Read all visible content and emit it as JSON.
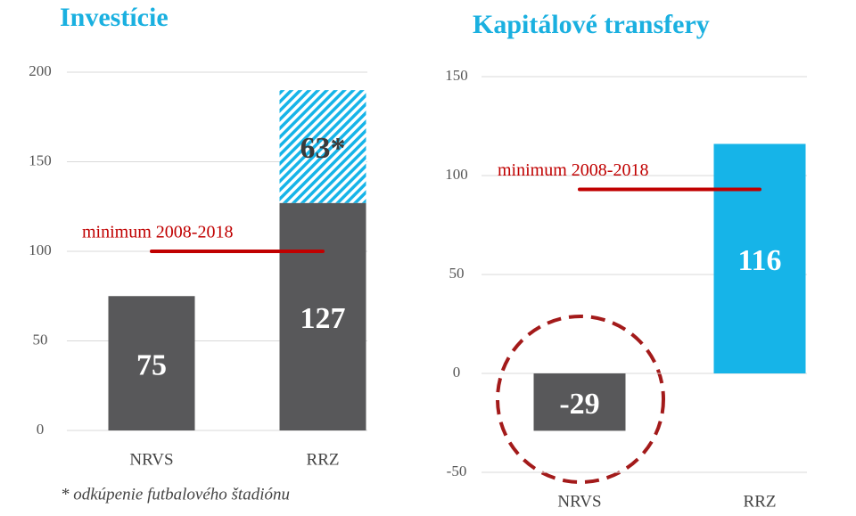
{
  "chart_data": [
    {
      "type": "stacked_bar",
      "title": "Investície",
      "categories": [
        "NRVS",
        "RRZ"
      ],
      "series": [
        {
          "color": "#58585a",
          "label_color": "#ffffff",
          "values": [
            75,
            127
          ]
        },
        {
          "color": "#16b4e8",
          "hatch": true,
          "label_color": "#3a3a3a",
          "values": [
            null,
            63
          ],
          "value_labels": [
            null,
            "63*"
          ]
        }
      ],
      "ylim": [
        0,
        200
      ],
      "yticks": [
        0,
        50,
        100,
        150,
        200
      ],
      "grid": true,
      "reference": {
        "label": "minimum 2008-2018",
        "value": 100,
        "color": "#c00000"
      },
      "footnote": "* odkúpenie futbalového štadiónu"
    },
    {
      "type": "bar",
      "title": "Kapitálové transfery",
      "categories": [
        "NRVS",
        "RRZ"
      ],
      "series": [
        {
          "colors": [
            "#58585a",
            "#16b4e8"
          ],
          "label_color": "#ffffff",
          "values": [
            -29,
            116
          ]
        }
      ],
      "ylim": [
        -50,
        150
      ],
      "yticks": [
        -50,
        0,
        50,
        100,
        150
      ],
      "grid": true,
      "reference": {
        "label": "minimum 2008-2018",
        "value": 93,
        "color": "#c00000"
      }
    }
  ]
}
